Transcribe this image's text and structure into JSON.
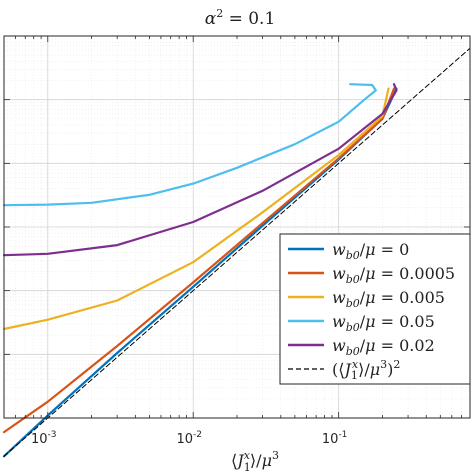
{
  "chart_data": {
    "type": "line",
    "title": "α² = 0.1",
    "xlabel": "⟨J₁ˣ⟩/μ³",
    "ylabel": "",
    "xscale": "log",
    "yscale": "log",
    "xlim": [
      0.0005,
      0.8
    ],
    "ylim": [
      1e-06,
      1
    ],
    "grid": true,
    "legend_position": "bottom-right",
    "x_ticks": [
      {
        "value": 0.001,
        "label": "10^-3",
        "base": "10",
        "exp": "-3"
      },
      {
        "value": 0.01,
        "label": "10^-2",
        "base": "10",
        "exp": "-2"
      },
      {
        "value": 0.1,
        "label": "10^-1",
        "base": "10",
        "exp": "-1"
      }
    ],
    "y_ticks": [
      1e-06,
      1e-05,
      0.0001,
      0.001,
      0.01,
      0.1,
      1
    ],
    "series": [
      {
        "name": "w_b0/μ = 0",
        "color": "#0072BD",
        "style": "solid",
        "points": [
          [
            0.0005,
            2.5e-07
          ],
          [
            0.001,
            1.1e-06
          ],
          [
            0.003,
            1.05e-05
          ],
          [
            0.01,
            0.000115
          ],
          [
            0.03,
            0.00105
          ],
          [
            0.1,
            0.0115
          ],
          [
            0.2,
            0.05
          ],
          [
            0.25,
            0.15
          ]
        ]
      },
      {
        "name": "w_b0/μ = 0.0005",
        "color": "#D95319",
        "style": "solid",
        "points": [
          [
            0.0005,
            6e-07
          ],
          [
            0.001,
            1.8e-06
          ],
          [
            0.003,
            1.35e-05
          ],
          [
            0.01,
            0.000135
          ],
          [
            0.03,
            0.00115
          ],
          [
            0.1,
            0.012
          ],
          [
            0.2,
            0.05
          ],
          [
            0.24,
            0.15
          ]
        ]
      },
      {
        "name": "w_b0/μ = 0.005",
        "color": "#EDB120",
        "style": "solid",
        "points": [
          [
            0.0005,
            2.5e-05
          ],
          [
            0.001,
            3.5e-05
          ],
          [
            0.003,
            7e-05
          ],
          [
            0.01,
            0.00028
          ],
          [
            0.03,
            0.0017
          ],
          [
            0.1,
            0.0135
          ],
          [
            0.2,
            0.055
          ],
          [
            0.22,
            0.15
          ]
        ]
      },
      {
        "name": "w_b0/μ = 0.05",
        "color": "#4DBEEE",
        "style": "solid",
        "points": [
          [
            0.0005,
            0.0022
          ],
          [
            0.001,
            0.00225
          ],
          [
            0.002,
            0.0024
          ],
          [
            0.005,
            0.0032
          ],
          [
            0.01,
            0.0048
          ],
          [
            0.02,
            0.0085
          ],
          [
            0.05,
            0.02
          ],
          [
            0.1,
            0.045
          ],
          [
            0.15,
            0.1
          ],
          [
            0.18,
            0.14
          ],
          [
            0.17,
            0.17
          ],
          [
            0.12,
            0.175
          ]
        ]
      },
      {
        "name": "w_b0/μ = 0.02",
        "color": "#7E2F8E",
        "style": "solid",
        "points": [
          [
            0.0005,
            0.00036
          ],
          [
            0.001,
            0.00038
          ],
          [
            0.003,
            0.00052
          ],
          [
            0.01,
            0.0012
          ],
          [
            0.03,
            0.0037
          ],
          [
            0.1,
            0.017
          ],
          [
            0.2,
            0.06
          ],
          [
            0.25,
            0.14
          ],
          [
            0.24,
            0.175
          ]
        ]
      },
      {
        "name": "(⟨J₁ˣ⟩/μ³)²",
        "color": "#000000",
        "style": "dashed",
        "points": [
          [
            0.0005,
            2.5e-07
          ],
          [
            0.8,
            0.64
          ]
        ]
      }
    ],
    "legend": [
      {
        "text": "w_b0/μ = 0",
        "sub": "b0",
        "value": "0",
        "kind": "w"
      },
      {
        "text": "w_b0/μ = 0.0005",
        "sub": "b0",
        "value": "0.0005",
        "kind": "w"
      },
      {
        "text": "w_b0/μ = 0.005",
        "sub": "b0",
        "value": "0.005",
        "kind": "w"
      },
      {
        "text": "w_b0/μ = 0.05",
        "sub": "b0",
        "value": "0.05",
        "kind": "w"
      },
      {
        "text": "w_b0/μ = 0.02",
        "sub": "b0",
        "value": "0.02",
        "kind": "w"
      },
      {
        "text": "(⟨J₁ˣ⟩/μ³)²",
        "kind": "ref"
      }
    ]
  }
}
